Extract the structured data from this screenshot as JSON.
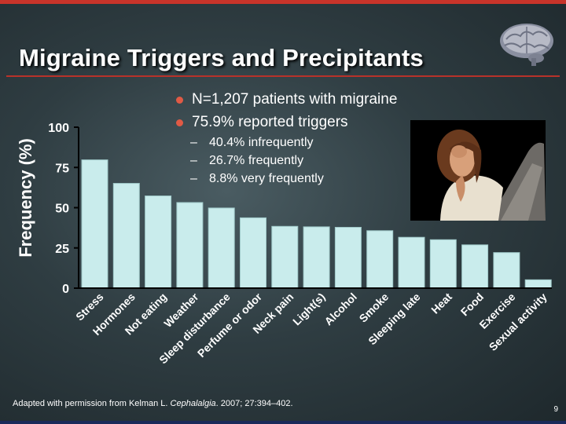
{
  "slide": {
    "title": "Migraine Triggers and Precipitants",
    "bullets": [
      "N=1,207 patients with migraine",
      "75.9% reported triggers"
    ],
    "sub_bullets": [
      "40.4% infrequently",
      "26.7% frequently",
      "8.8% very frequently"
    ],
    "source_prefix": "Adapted with permission from Kelman L. ",
    "source_journal": "Cephalalgia",
    "source_suffix": ". 2007; 27:394–402.",
    "page_number": "9",
    "photo_icon": "woman-with-headache-photo",
    "logo_icon": "brain-icon"
  },
  "chart_data": {
    "type": "bar",
    "ylabel": "Frequency (%)",
    "xlabel": "",
    "ylim": [
      0,
      100
    ],
    "yticks": [
      0,
      25,
      50,
      75,
      100
    ],
    "categories": [
      "Stress",
      "Hormones",
      "Not eating",
      "Weather",
      "Sleep disturbance",
      "Perfume or odor",
      "Neck pain",
      "Light(s)",
      "Alcohol",
      "Smoke",
      "Sleeping late",
      "Heat",
      "Food",
      "Exercise",
      "Sexual activity"
    ],
    "values": [
      79.7,
      65.1,
      57.3,
      53.2,
      49.8,
      43.7,
      38.4,
      38.1,
      37.8,
      35.7,
      31.6,
      30.1,
      26.9,
      22.1,
      5.2
    ],
    "grid": false,
    "bar_color": "#c9ecec"
  }
}
